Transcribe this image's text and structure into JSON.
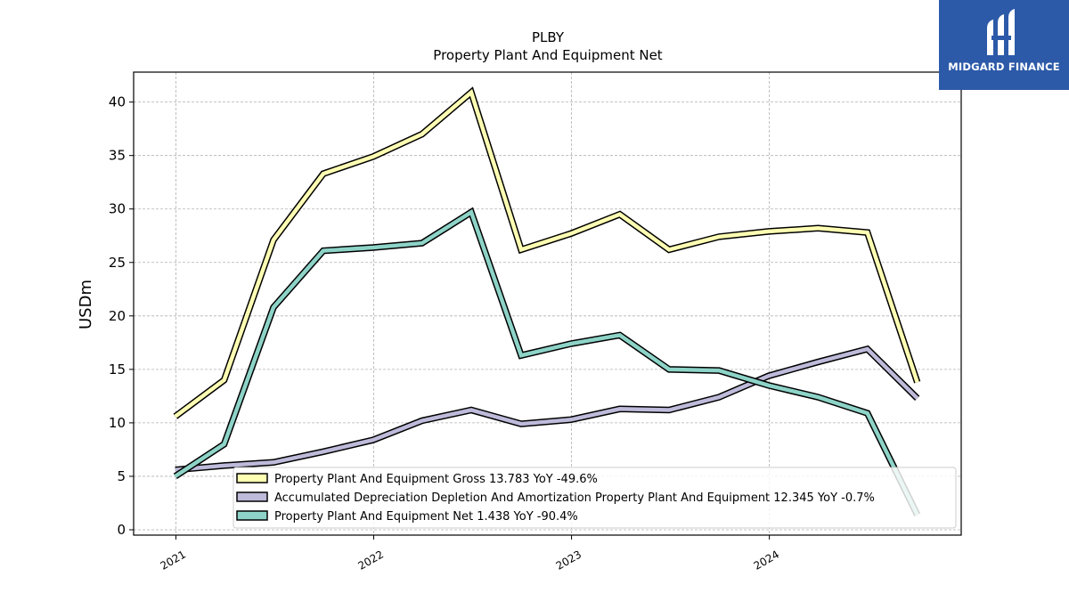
{
  "logo": {
    "text": "MIDGARD FINANCE",
    "color": "#2c5aa8"
  },
  "chart_data": {
    "type": "line",
    "title": "PLBY",
    "subtitle": "Property Plant And Equipment Net",
    "ylabel": "USDm",
    "xlabel": "",
    "ylim": [
      -0.5,
      42.8
    ],
    "yticks": [
      0,
      5,
      10,
      15,
      20,
      25,
      30,
      35,
      40
    ],
    "xlim": [
      "2020-10-15",
      "2024-12-20"
    ],
    "xticks": [
      {
        "date": "2021-01-01",
        "label": "2021"
      },
      {
        "date": "2022-01-01",
        "label": "2022"
      },
      {
        "date": "2023-01-01",
        "label": "2023"
      },
      {
        "date": "2024-01-01",
        "label": "2024"
      }
    ],
    "grid": true,
    "legend_position": "bottom-center",
    "x": [
      "2020-12-31",
      "2021-03-31",
      "2021-06-30",
      "2021-09-30",
      "2021-12-31",
      "2022-03-31",
      "2022-06-30",
      "2022-09-30",
      "2022-12-31",
      "2023-03-31",
      "2023-06-30",
      "2023-09-30",
      "2023-12-31",
      "2024-03-31",
      "2024-06-30",
      "2024-09-30"
    ],
    "series": [
      {
        "name": "Property Plant And Equipment Gross",
        "legend_label": "Property Plant And Equipment Gross  13.783 YoY -49.6%",
        "color": "#ffffb3",
        "values": [
          10.6,
          14.0,
          27.1,
          33.3,
          34.9,
          37.0,
          40.9,
          26.2,
          27.7,
          29.5,
          26.2,
          27.4,
          27.9,
          28.2,
          27.8,
          13.8
        ]
      },
      {
        "name": "Accumulated Depreciation Depletion And Amortization Property Plant And Equipment",
        "legend_label": "Accumulated Depreciation Depletion And Amortization Property Plant And Equipment  12.345 YoY -0.7%",
        "color": "#bebada",
        "values": [
          5.6,
          6.0,
          6.3,
          7.3,
          8.4,
          10.2,
          11.2,
          9.9,
          10.3,
          11.3,
          11.2,
          12.4,
          14.4,
          15.7,
          16.9,
          12.3
        ]
      },
      {
        "name": "Property Plant And Equipment Net",
        "legend_label": "Property Plant And Equipment Net  1.438 YoY -90.4%",
        "color": "#8dd3c7",
        "values": [
          5.0,
          8.0,
          20.8,
          26.1,
          26.4,
          26.8,
          29.7,
          16.3,
          17.4,
          18.2,
          15.0,
          14.9,
          13.5,
          12.4,
          10.9,
          1.4
        ]
      }
    ]
  }
}
